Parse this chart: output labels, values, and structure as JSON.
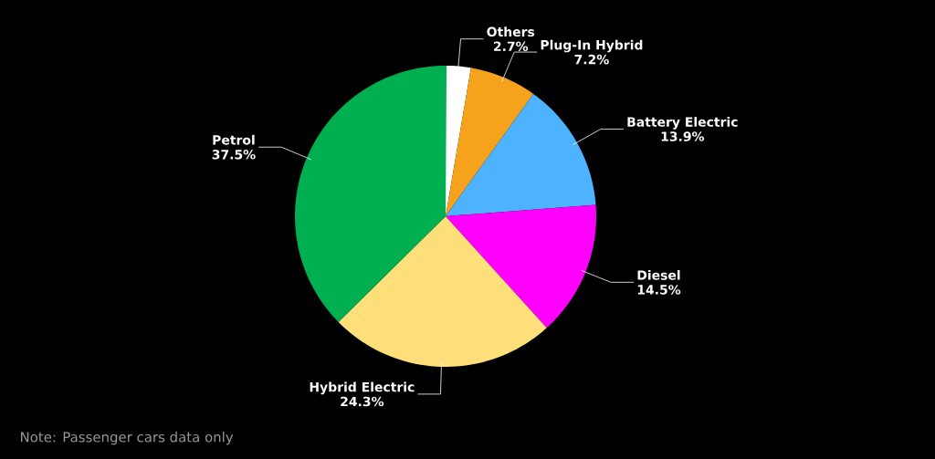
{
  "chart_data": {
    "type": "pie",
    "categories": [
      "Others",
      "Plug-In Hybrid",
      "Battery Electric",
      "Diesel",
      "Hybrid Electric",
      "Petrol"
    ],
    "values": [
      2.7,
      7.2,
      13.9,
      14.5,
      24.3,
      37.5
    ],
    "value_labels": [
      "2.7%",
      "7.2%",
      "13.9%",
      "14.5%",
      "24.3%",
      "37.5%"
    ],
    "colors": [
      "#ffffff",
      "#f5a31d",
      "#4db2ff",
      "#ff00ff",
      "#ffdf7a",
      "#00b050"
    ],
    "annotations": [
      "Note: Passenger cars data only"
    ]
  }
}
